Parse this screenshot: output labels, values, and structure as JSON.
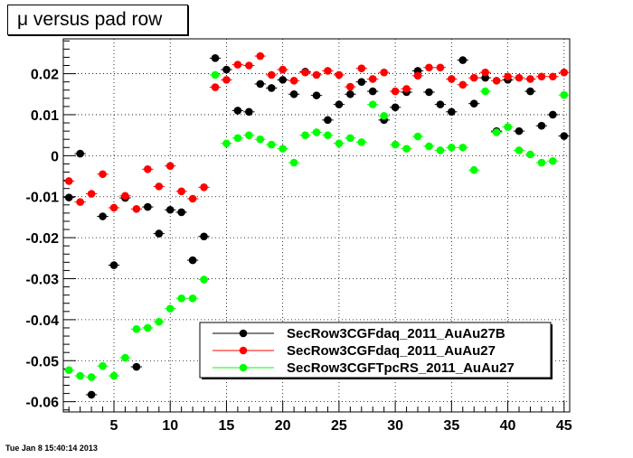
{
  "title": "μ versus pad row",
  "footer": "Tue Jan  8 15:40:14 2013",
  "chart_data": {
    "type": "scatter",
    "title": "μ versus pad row",
    "xlabel": "",
    "ylabel": "",
    "xlim": [
      0.5,
      45.5
    ],
    "ylim": [
      -0.0625,
      0.0285
    ],
    "grid": true,
    "legend_position": "bottom-right",
    "x_ticks": [
      5,
      10,
      15,
      20,
      25,
      30,
      35,
      40,
      45
    ],
    "y_ticks": [
      -0.06,
      -0.05,
      -0.04,
      -0.03,
      -0.02,
      -0.01,
      0,
      0.01,
      0.02
    ],
    "y_tick_labels": [
      "-0.06",
      "-0.05",
      "-0.04",
      "-0.03",
      "-0.02",
      "-0.01",
      "0",
      "0.01",
      "0.02"
    ],
    "x": [
      1,
      2,
      3,
      4,
      5,
      6,
      7,
      8,
      9,
      10,
      11,
      12,
      13,
      14,
      15,
      16,
      17,
      18,
      19,
      20,
      21,
      22,
      23,
      24,
      25,
      26,
      27,
      28,
      29,
      30,
      31,
      32,
      33,
      34,
      35,
      36,
      37,
      38,
      39,
      40,
      41,
      42,
      43,
      44,
      45
    ],
    "series": [
      {
        "name": "SecRow3CGFdaq_2011_AuAu27B",
        "color": "#000000",
        "values": [
          -0.0102,
          0.0005,
          -0.0583,
          -0.0148,
          -0.0267,
          -0.0103,
          -0.0515,
          -0.0125,
          -0.019,
          -0.0132,
          -0.0138,
          -0.0255,
          -0.0197,
          0.0238,
          0.021,
          0.011,
          0.0107,
          0.0175,
          0.0165,
          0.0185,
          0.015,
          0.0205,
          0.0147,
          0.0087,
          0.0125,
          0.015,
          0.018,
          0.0157,
          0.0087,
          0.0118,
          0.0155,
          0.0207,
          0.0155,
          0.0125,
          0.0107,
          0.0233,
          0.0127,
          0.019,
          0.006,
          0.0185,
          0.006,
          0.0157,
          0.0073,
          0.01,
          0.0048
        ]
      },
      {
        "name": "SecRow3CGFdaq_2011_AuAu27",
        "color": "#ff0000",
        "values": [
          -0.0062,
          -0.0113,
          -0.0093,
          -0.0045,
          -0.0127,
          -0.0098,
          -0.013,
          -0.0033,
          -0.0075,
          -0.0025,
          -0.0087,
          -0.0105,
          -0.0077,
          0.0167,
          0.0185,
          0.0222,
          0.022,
          0.0243,
          0.0197,
          0.021,
          0.0183,
          0.0203,
          0.0197,
          0.0207,
          0.0197,
          0.0168,
          0.0213,
          0.0187,
          0.0203,
          0.0157,
          0.0163,
          0.0195,
          0.0215,
          0.0215,
          0.0187,
          0.0173,
          0.019,
          0.0203,
          0.0183,
          0.0193,
          0.019,
          0.0187,
          0.0193,
          0.0193,
          0.0203
        ]
      },
      {
        "name": "SecRow3CGFTpcRS_2011_AuAu27",
        "color": "#00ff00",
        "values": [
          -0.0523,
          -0.0537,
          -0.054,
          -0.0513,
          -0.0537,
          -0.0493,
          -0.0423,
          -0.042,
          -0.0405,
          -0.0373,
          -0.0348,
          -0.0348,
          -0.0302,
          0.0197,
          0.003,
          0.0043,
          0.005,
          0.004,
          0.0027,
          0.0017,
          -0.0017,
          0.005,
          0.0057,
          0.005,
          0.003,
          0.0043,
          0.0033,
          0.0125,
          0.0097,
          0.0027,
          0.0017,
          0.0047,
          0.0023,
          0.0013,
          0.002,
          0.002,
          -0.0035,
          0.0157,
          0.0057,
          0.007,
          0.0013,
          0.0003,
          -0.0017,
          -0.0013,
          0.0148
        ]
      }
    ]
  }
}
